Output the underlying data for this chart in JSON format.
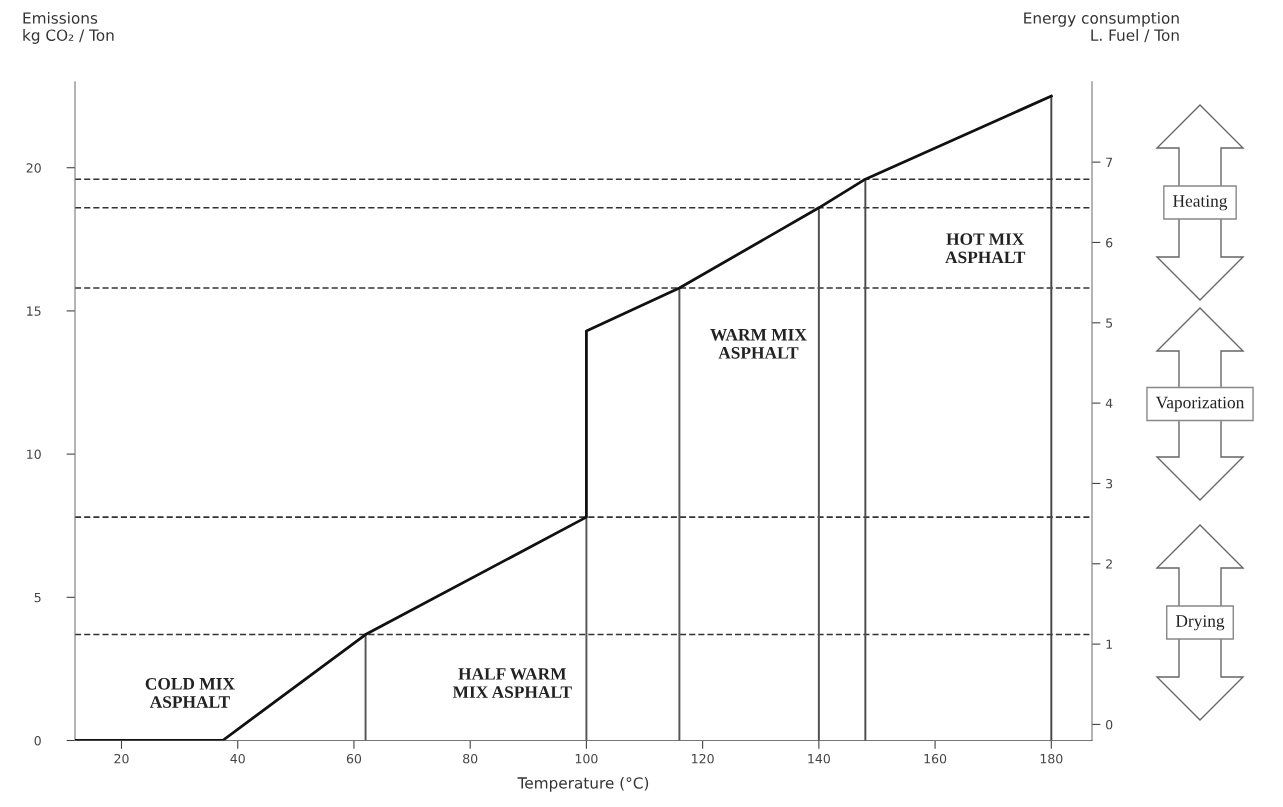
{
  "chart_data": {
    "type": "line",
    "xlabel": "Temperature (°C)",
    "ylabel": "Emissions\nkg CO₂ / Ton",
    "y2label": "Energy consumption\nL. Fuel / Ton",
    "xlim": [
      12,
      187
    ],
    "xticks": [
      20,
      40,
      60,
      80,
      100,
      120,
      140,
      160,
      180
    ],
    "ylim": [
      0,
      23
    ],
    "yticks": [
      0,
      5,
      10,
      15,
      20
    ],
    "y2lim": [
      -0.2,
      8.0
    ],
    "y2ticks": [
      0,
      1,
      2,
      3,
      4,
      5,
      6,
      7
    ],
    "grid": false,
    "marker": "none",
    "series": [
      {
        "color": "#111111",
        "x": [
          12,
          37.4,
          62,
          100,
          100,
          116,
          140,
          148,
          180
        ],
        "values": [
          0,
          0,
          3.7,
          7.8,
          14.3,
          15.8,
          18.6,
          19.6,
          22.5
        ]
      },
      {
        "color": "#555555",
        "x": [
          62,
          62
        ],
        "values": [
          0,
          3.7
        ]
      },
      {
        "color": "#555555",
        "x": [
          100,
          100
        ],
        "values": [
          0,
          7.8
        ]
      },
      {
        "color": "#555555",
        "x": [
          116,
          116
        ],
        "values": [
          0,
          15.8
        ]
      },
      {
        "color": "#505050",
        "x": [
          140,
          140
        ],
        "values": [
          0,
          18.6
        ]
      },
      {
        "color": "#4b4b4b",
        "x": [
          148,
          148
        ],
        "values": [
          0,
          19.6
        ]
      },
      {
        "color": "#464646",
        "x": [
          180,
          180
        ],
        "values": [
          0,
          22.5
        ]
      }
    ],
    "ref_lines": [
      {
        "axis": "y",
        "value": 19.6,
        "color": "#333333",
        "line_style": "dashed"
      },
      {
        "axis": "y",
        "value": 18.6,
        "color": "#333333",
        "line_style": "dashed"
      },
      {
        "axis": "y",
        "value": 15.8,
        "color": "#333333",
        "line_style": "dashed"
      },
      {
        "axis": "y",
        "value": 7.8,
        "color": "#333333",
        "line_style": "dashed"
      },
      {
        "axis": "y",
        "value": 3.7,
        "color": "#333333",
        "line_style": "dashed"
      }
    ],
    "annotations": [
      "COLD MIX\nASPHALT",
      "HALF WARM\nMIX ASPHALT",
      "WARM MIX\nASPHALT",
      "HOT MIX\nASPHALT",
      "Heating",
      "Vaporization",
      "Drying"
    ]
  }
}
